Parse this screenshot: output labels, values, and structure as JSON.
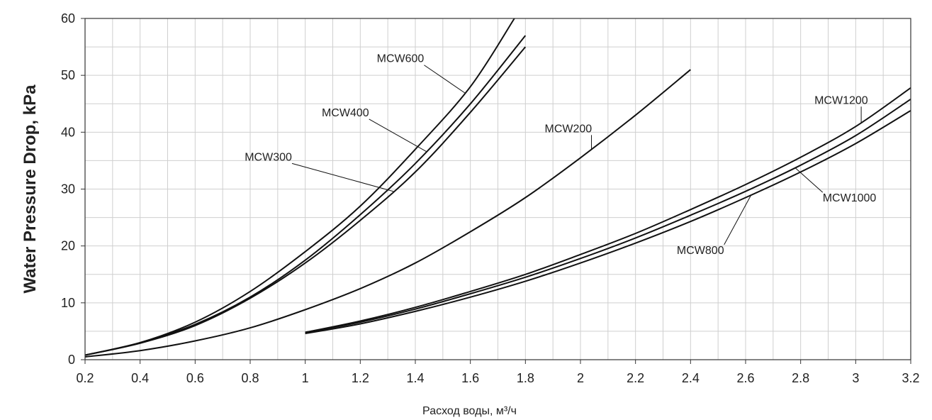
{
  "chart_data": {
    "type": "line",
    "title": "",
    "xlabel": "Расход воды, м³/ч",
    "ylabel": "Water Pressure Drop, kPa",
    "xlim": [
      0.2,
      3.2
    ],
    "ylim": [
      0,
      60
    ],
    "x_ticks": [
      "0.2",
      "0.4",
      "0.6",
      "0.8",
      "1",
      "1.2",
      "1.4",
      "1.6",
      "1.8",
      "2",
      "2.2",
      "2.4",
      "2.6",
      "2.8",
      "3",
      "3.2"
    ],
    "y_ticks": [
      "0",
      "10",
      "20",
      "30",
      "40",
      "50",
      "60"
    ],
    "grid": true,
    "legend": "inline labels",
    "line_color": "#111111",
    "series": [
      {
        "name": "MCW600",
        "x": [
          0.2,
          0.4,
          0.6,
          0.8,
          1.0,
          1.2,
          1.4,
          1.6,
          1.76
        ],
        "y": [
          0.8,
          3.0,
          6.6,
          12.0,
          19.0,
          27.0,
          37.0,
          48.0,
          60.0
        ],
        "label_x": 1.26,
        "label_y": 52.3
      },
      {
        "name": "MCW400",
        "x": [
          0.2,
          0.4,
          0.6,
          0.8,
          1.0,
          1.2,
          1.4,
          1.6,
          1.8
        ],
        "y": [
          0.8,
          3.0,
          6.2,
          11.0,
          17.5,
          25.5,
          34.5,
          45.0,
          57.0
        ],
        "label_x": 1.06,
        "label_y": 42.8
      },
      {
        "name": "MCW300",
        "x": [
          0.2,
          0.4,
          0.6,
          0.8,
          1.0,
          1.2,
          1.4,
          1.6,
          1.8
        ],
        "y": [
          0.8,
          2.9,
          6.0,
          10.8,
          17.0,
          24.5,
          33.0,
          43.5,
          55.0
        ],
        "label_x": 0.78,
        "label_y": 35.0
      },
      {
        "name": "MCW200",
        "x": [
          0.2,
          0.4,
          0.6,
          0.8,
          1.0,
          1.2,
          1.4,
          1.6,
          1.8,
          2.0,
          2.2,
          2.4
        ],
        "y": [
          0.5,
          1.6,
          3.3,
          5.6,
          8.8,
          12.5,
          17.0,
          22.5,
          28.5,
          35.5,
          43.0,
          51.0
        ],
        "label_x": 1.87,
        "label_y": 40.0
      },
      {
        "name": "MCW1200",
        "x": [
          1.0,
          1.2,
          1.4,
          1.6,
          1.8,
          2.0,
          2.2,
          2.4,
          2.6,
          2.8,
          3.0,
          3.2
        ],
        "y": [
          4.8,
          6.8,
          9.2,
          12.0,
          15.0,
          18.5,
          22.2,
          26.4,
          30.8,
          35.6,
          41.0,
          47.8
        ],
        "label_x": 2.85,
        "label_y": 45.0
      },
      {
        "name": "MCW1000",
        "x": [
          1.0,
          1.2,
          1.4,
          1.6,
          1.8,
          2.0,
          2.2,
          2.4,
          2.6,
          2.8,
          3.0,
          3.2
        ],
        "y": [
          4.8,
          6.6,
          8.9,
          11.6,
          14.5,
          17.8,
          21.4,
          25.4,
          29.6,
          34.2,
          39.4,
          45.8
        ],
        "label_x": 2.88,
        "label_y": 27.8
      },
      {
        "name": "MCW800",
        "x": [
          1.0,
          1.2,
          1.4,
          1.6,
          1.8,
          2.0,
          2.2,
          2.4,
          2.6,
          2.8,
          3.0,
          3.2
        ],
        "y": [
          4.6,
          6.3,
          8.5,
          11.0,
          13.8,
          17.0,
          20.5,
          24.3,
          28.5,
          33.0,
          38.0,
          43.8
        ],
        "label_x": 2.35,
        "label_y": 18.6
      }
    ]
  }
}
